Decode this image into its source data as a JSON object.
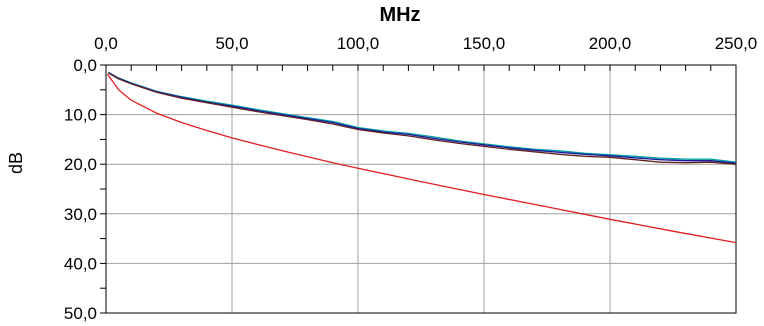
{
  "chart_data": {
    "type": "line",
    "title": "",
    "xlabel": "MHz",
    "ylabel": "dB",
    "x_axis_position": "top",
    "y_inverted": true,
    "xlim": [
      0,
      250
    ],
    "ylim": [
      0,
      50
    ],
    "x_ticks": [
      0,
      50,
      100,
      150,
      200,
      250
    ],
    "x_tick_labels": [
      "0,0",
      "50,0",
      "100,0",
      "150,0",
      "200,0",
      "250,0"
    ],
    "y_ticks": [
      0,
      10,
      20,
      30,
      40,
      50
    ],
    "y_tick_labels": [
      "0,0",
      "10,0",
      "20,0",
      "30,0",
      "40,0",
      "50,0"
    ],
    "grid": true,
    "legend": "none",
    "series": [
      {
        "color": "#00a0a0",
        "x": [
          1,
          5,
          10,
          20,
          30,
          40,
          50,
          60,
          70,
          80,
          90,
          100,
          110,
          120,
          130,
          140,
          150,
          160,
          170,
          180,
          190,
          200,
          210,
          220,
          230,
          240,
          250
        ],
        "y": [
          1.5,
          2.6,
          3.6,
          5.3,
          6.4,
          7.3,
          8.1,
          9.0,
          9.8,
          10.6,
          11.4,
          12.6,
          13.3,
          13.8,
          14.5,
          15.3,
          15.9,
          16.5,
          17.0,
          17.3,
          17.8,
          18.1,
          18.4,
          18.8,
          19.0,
          19.0,
          19.6
        ]
      },
      {
        "color": "#1a1aa0",
        "x": [
          1,
          5,
          10,
          20,
          30,
          40,
          50,
          60,
          70,
          80,
          90,
          100,
          110,
          120,
          130,
          140,
          150,
          160,
          170,
          180,
          190,
          200,
          210,
          220,
          230,
          240,
          250
        ],
        "y": [
          1.5,
          2.7,
          3.7,
          5.4,
          6.5,
          7.5,
          8.3,
          9.2,
          10.0,
          10.8,
          11.6,
          12.8,
          13.5,
          14.0,
          14.8,
          15.5,
          16.1,
          16.7,
          17.2,
          17.6,
          18.0,
          18.3,
          18.7,
          19.1,
          19.3,
          19.3,
          19.8
        ]
      },
      {
        "color": "#602020",
        "x": [
          1,
          5,
          10,
          20,
          30,
          40,
          50,
          60,
          70,
          80,
          90,
          100,
          110,
          120,
          130,
          140,
          150,
          160,
          170,
          180,
          190,
          200,
          210,
          220,
          230,
          240,
          250
        ],
        "y": [
          1.6,
          2.8,
          3.8,
          5.5,
          6.7,
          7.6,
          8.5,
          9.4,
          10.2,
          11.0,
          11.9,
          13.0,
          13.7,
          14.3,
          15.1,
          15.8,
          16.4,
          17.0,
          17.5,
          18.0,
          18.4,
          18.6,
          19.1,
          19.6,
          19.7,
          19.6,
          20.0
        ]
      },
      {
        "color": "#e02020",
        "x": [
          0.5,
          5,
          10,
          20,
          30,
          40,
          50,
          60,
          70,
          80,
          90,
          100,
          125,
          150,
          175,
          200,
          225,
          250
        ],
        "y": [
          1.8,
          5.0,
          7.1,
          9.7,
          11.6,
          13.2,
          14.7,
          16.0,
          17.3,
          18.5,
          19.7,
          20.8,
          23.5,
          26.1,
          28.6,
          31.1,
          33.5,
          35.8
        ]
      }
    ]
  }
}
